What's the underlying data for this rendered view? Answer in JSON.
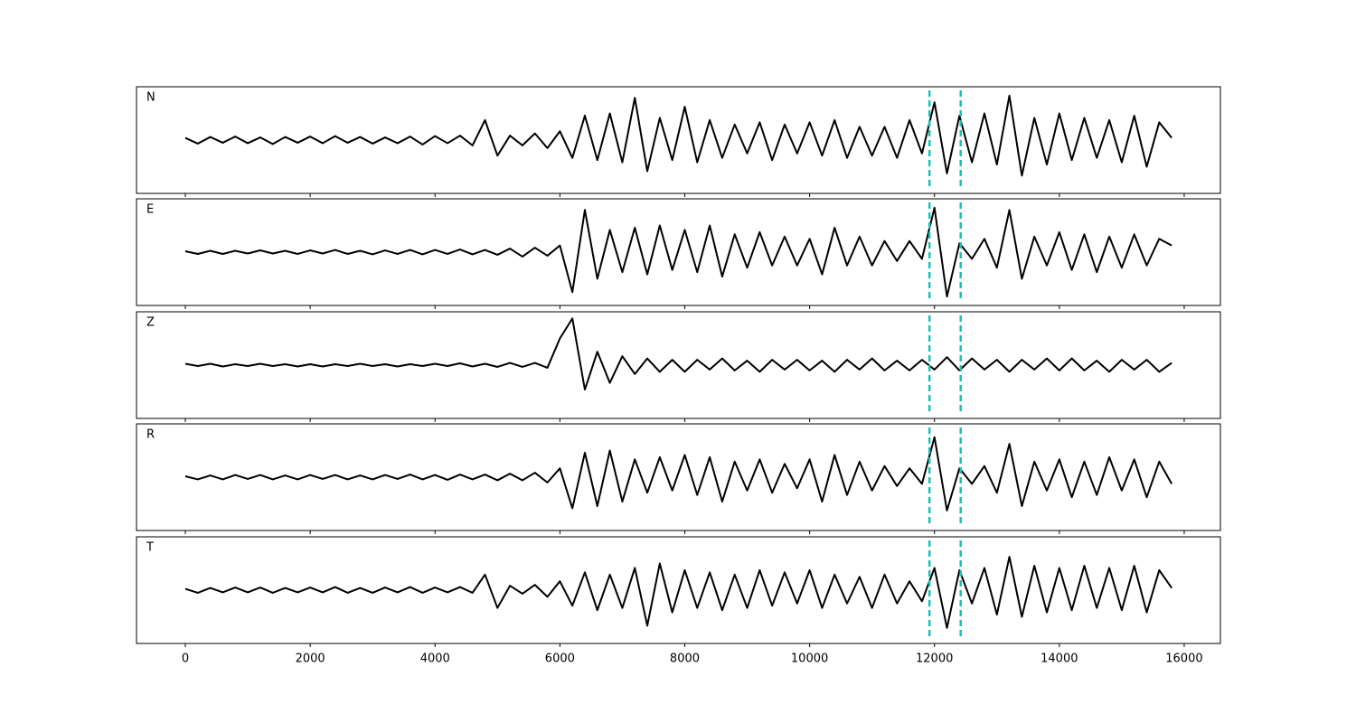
{
  "chart_data": {
    "type": "line",
    "x": [
      0,
      200,
      400,
      600,
      800,
      1000,
      1200,
      1400,
      1600,
      1800,
      2000,
      2200,
      2400,
      2600,
      2800,
      3000,
      3200,
      3400,
      3600,
      3800,
      4000,
      4200,
      4400,
      4600,
      4800,
      5000,
      5200,
      5400,
      5600,
      5800,
      6000,
      6200,
      6400,
      6600,
      6800,
      7000,
      7200,
      7400,
      7600,
      7800,
      8000,
      8200,
      8400,
      8600,
      8800,
      9000,
      9200,
      9400,
      9600,
      9800,
      10000,
      10200,
      10400,
      10600,
      10800,
      11000,
      11200,
      11400,
      11600,
      11800,
      12000,
      12200,
      12400,
      12600,
      12800,
      13000,
      13200,
      13400,
      13600,
      13800,
      14000,
      14200,
      14400,
      14600,
      14800,
      15000,
      15200,
      15400,
      15600,
      15800
    ],
    "series": [
      {
        "name": "N",
        "color": "#000000",
        "values": [
          0.05,
          -0.08,
          0.07,
          -0.06,
          0.08,
          -0.07,
          0.06,
          -0.09,
          0.07,
          -0.06,
          0.08,
          -0.07,
          0.09,
          -0.06,
          0.07,
          -0.08,
          0.06,
          -0.07,
          0.08,
          -0.1,
          0.09,
          -0.07,
          0.1,
          -0.12,
          0.45,
          -0.35,
          0.1,
          -0.12,
          0.15,
          -0.18,
          0.2,
          -0.4,
          0.55,
          -0.45,
          0.6,
          -0.5,
          0.95,
          -0.7,
          0.5,
          -0.45,
          0.75,
          -0.5,
          0.45,
          -0.4,
          0.35,
          -0.3,
          0.4,
          -0.45,
          0.35,
          -0.3,
          0.4,
          -0.35,
          0.45,
          -0.4,
          0.3,
          -0.35,
          0.3,
          -0.4,
          0.45,
          -0.3,
          0.85,
          -0.75,
          0.55,
          -0.5,
          0.6,
          -0.55,
          1.0,
          -0.8,
          0.5,
          -0.55,
          0.6,
          -0.45,
          0.5,
          -0.4,
          0.45,
          -0.5,
          0.55,
          -0.6,
          0.4,
          0.05
        ]
      },
      {
        "name": "E",
        "color": "#000000",
        "values": [
          0.02,
          -0.04,
          0.03,
          -0.04,
          0.03,
          -0.03,
          0.04,
          -0.03,
          0.03,
          -0.04,
          0.04,
          -0.03,
          0.05,
          -0.04,
          0.03,
          -0.05,
          0.04,
          -0.04,
          0.05,
          -0.05,
          0.05,
          -0.04,
          0.06,
          -0.05,
          0.05,
          -0.06,
          0.08,
          -0.1,
          0.1,
          -0.08,
          0.15,
          -0.9,
          0.95,
          -0.6,
          0.5,
          -0.45,
          0.55,
          -0.5,
          0.6,
          -0.4,
          0.5,
          -0.45,
          0.6,
          -0.55,
          0.4,
          -0.35,
          0.45,
          -0.3,
          0.35,
          -0.3,
          0.3,
          -0.5,
          0.55,
          -0.3,
          0.35,
          -0.3,
          0.25,
          -0.2,
          0.25,
          -0.15,
          1.0,
          -1.0,
          0.2,
          -0.15,
          0.3,
          -0.35,
          0.95,
          -0.6,
          0.35,
          -0.3,
          0.45,
          -0.4,
          0.4,
          -0.45,
          0.35,
          -0.35,
          0.4,
          -0.3,
          0.3,
          0.15
        ]
      },
      {
        "name": "Z",
        "color": "#000000",
        "values": [
          0.03,
          -0.02,
          0.03,
          -0.03,
          0.02,
          -0.02,
          0.03,
          -0.02,
          0.02,
          -0.03,
          0.02,
          -0.03,
          0.02,
          -0.02,
          0.03,
          -0.02,
          0.02,
          -0.03,
          0.02,
          -0.02,
          0.03,
          -0.02,
          0.04,
          -0.03,
          0.03,
          -0.04,
          0.05,
          -0.04,
          0.05,
          -0.06,
          0.6,
          1.05,
          -0.55,
          0.3,
          -0.4,
          0.2,
          -0.2,
          0.15,
          -0.15,
          0.12,
          -0.15,
          0.12,
          -0.1,
          0.15,
          -0.12,
          0.1,
          -0.15,
          0.12,
          -0.1,
          0.12,
          -0.12,
          0.1,
          -0.15,
          0.12,
          -0.1,
          0.15,
          -0.12,
          0.1,
          -0.12,
          0.12,
          -0.1,
          0.18,
          -0.12,
          0.15,
          -0.1,
          0.12,
          -0.15,
          0.12,
          -0.1,
          0.15,
          -0.12,
          0.15,
          -0.12,
          0.1,
          -0.15,
          0.12,
          -0.1,
          0.12,
          -0.15,
          0.05
        ]
      },
      {
        "name": "R",
        "color": "#000000",
        "values": [
          0.02,
          -0.05,
          0.04,
          -0.05,
          0.05,
          -0.04,
          0.05,
          -0.05,
          0.04,
          -0.05,
          0.05,
          -0.04,
          0.05,
          -0.05,
          0.04,
          -0.05,
          0.05,
          -0.04,
          0.06,
          -0.05,
          0.05,
          -0.06,
          0.06,
          -0.05,
          0.06,
          -0.07,
          0.08,
          -0.07,
          0.1,
          -0.12,
          0.2,
          -0.7,
          0.55,
          -0.65,
          0.6,
          -0.55,
          0.4,
          -0.35,
          0.45,
          -0.3,
          0.5,
          -0.4,
          0.45,
          -0.55,
          0.35,
          -0.3,
          0.4,
          -0.35,
          0.3,
          -0.25,
          0.4,
          -0.55,
          0.5,
          -0.4,
          0.35,
          -0.3,
          0.25,
          -0.2,
          0.2,
          -0.15,
          0.9,
          -0.75,
          0.2,
          -0.15,
          0.25,
          -0.35,
          0.75,
          -0.65,
          0.35,
          -0.3,
          0.4,
          -0.45,
          0.35,
          -0.4,
          0.45,
          -0.3,
          0.4,
          -0.45,
          0.35,
          -0.15
        ]
      },
      {
        "name": "T",
        "color": "#000000",
        "values": [
          0.03,
          -0.06,
          0.05,
          -0.05,
          0.06,
          -0.05,
          0.06,
          -0.06,
          0.05,
          -0.05,
          0.06,
          -0.05,
          0.07,
          -0.06,
          0.05,
          -0.06,
          0.06,
          -0.05,
          0.07,
          -0.06,
          0.06,
          -0.05,
          0.07,
          -0.06,
          0.35,
          -0.4,
          0.1,
          -0.08,
          0.12,
          -0.15,
          0.2,
          -0.35,
          0.4,
          -0.45,
          0.35,
          -0.4,
          0.5,
          -0.8,
          0.6,
          -0.5,
          0.45,
          -0.4,
          0.4,
          -0.45,
          0.35,
          -0.4,
          0.45,
          -0.35,
          0.4,
          -0.3,
          0.45,
          -0.4,
          0.35,
          -0.3,
          0.3,
          -0.4,
          0.35,
          -0.3,
          0.2,
          -0.25,
          0.5,
          -0.85,
          0.45,
          -0.3,
          0.5,
          -0.55,
          0.75,
          -0.6,
          0.55,
          -0.5,
          0.5,
          -0.45,
          0.55,
          -0.4,
          0.5,
          -0.45,
          0.55,
          -0.5,
          0.45,
          0.05
        ]
      }
    ],
    "markers": [
      11920,
      12420
    ],
    "marker_color": "#17c2b8",
    "xlim": [
      -782,
      16580
    ],
    "xticks": [
      0,
      2000,
      4000,
      6000,
      8000,
      10000,
      12000,
      14000,
      16000
    ],
    "ylim": [
      -1.2,
      1.2
    ]
  }
}
